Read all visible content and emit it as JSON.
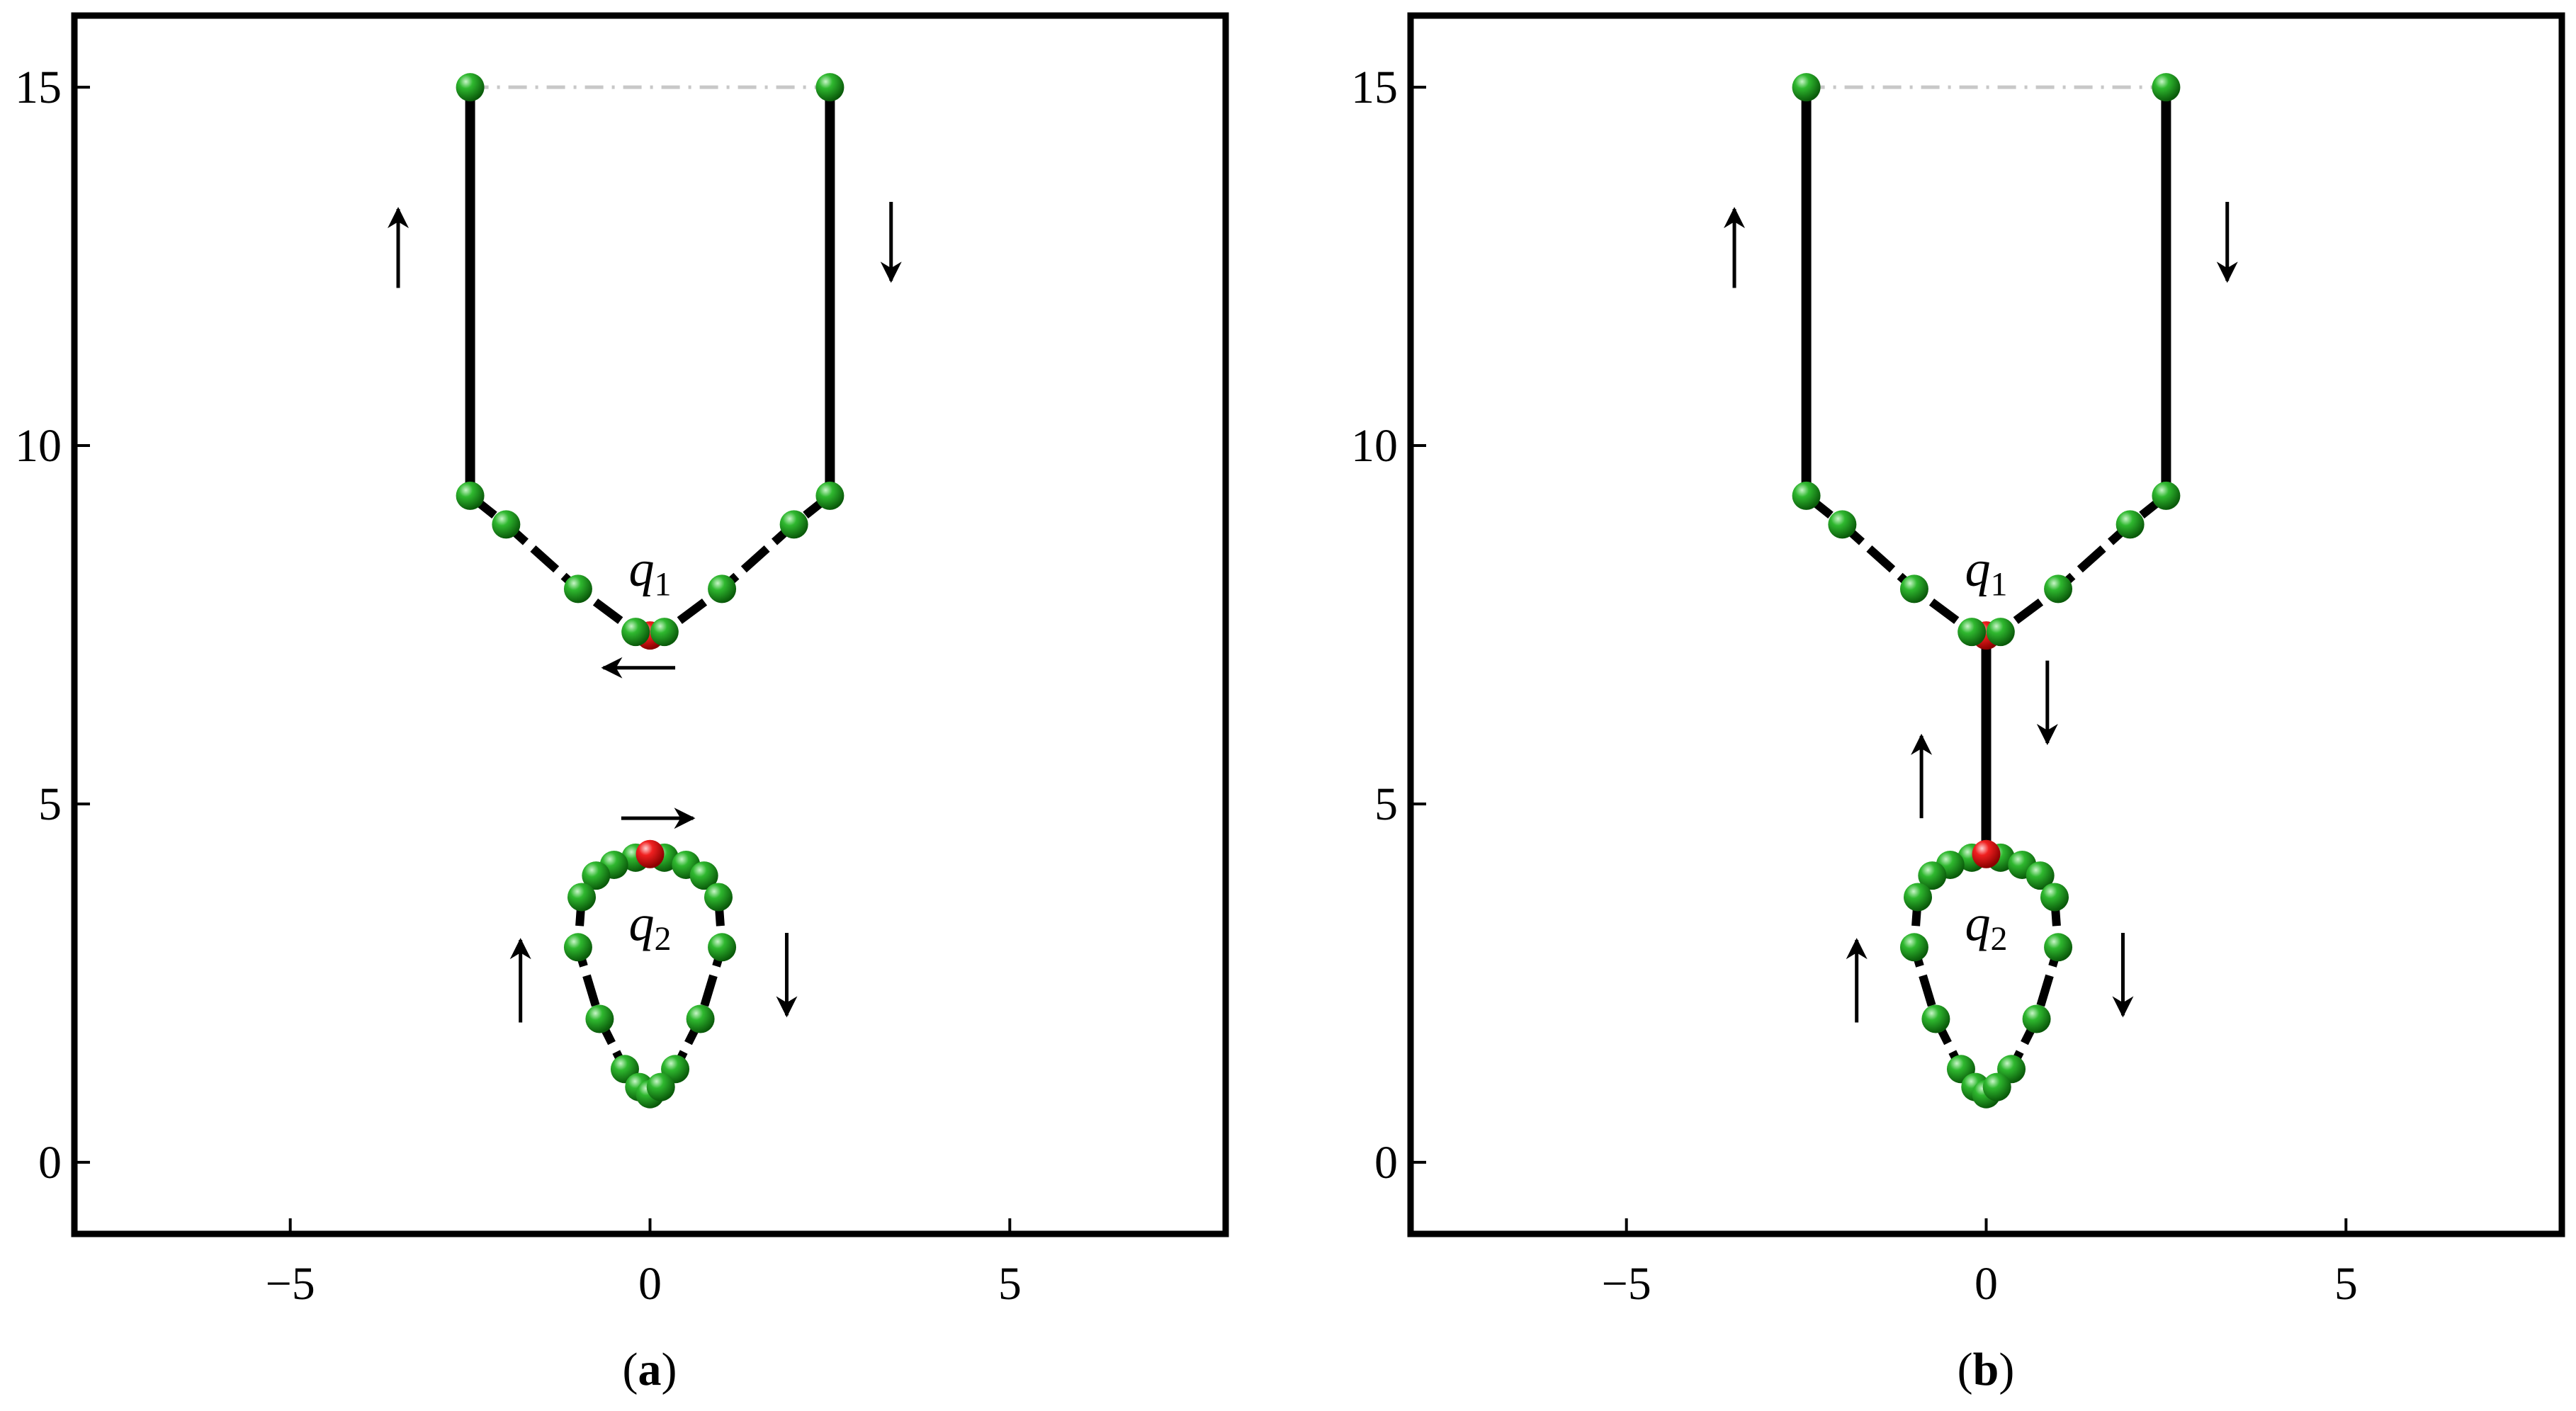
{
  "panels": [
    {
      "id": "a",
      "label_open": "(",
      "label_letter": "a",
      "label_close": ")",
      "x_ticks": [
        "−5",
        "0",
        "5"
      ],
      "y_ticks": [
        "0",
        "5",
        "10",
        "15"
      ],
      "node_q1": {
        "symbol": "q",
        "sub": "1"
      },
      "node_q2": {
        "symbol": "q",
        "sub": "2"
      },
      "connector": false
    },
    {
      "id": "b",
      "label_open": "(",
      "label_letter": "b",
      "label_close": ")",
      "x_ticks": [
        "−5",
        "0",
        "5"
      ],
      "y_ticks": [
        "0",
        "5",
        "10",
        "15"
      ],
      "node_q1": {
        "symbol": "q",
        "sub": "1"
      },
      "node_q2": {
        "symbol": "q",
        "sub": "2"
      },
      "connector": true
    }
  ],
  "axes": {
    "xlim": [
      -8,
      8
    ],
    "ylim": [
      -1,
      16
    ],
    "x_tick_values": [
      -5,
      0,
      5
    ],
    "y_tick_values": [
      0,
      5,
      10,
      15
    ]
  },
  "colors": {
    "node": "#1e9b1e",
    "node_highlight": "#e81c1c",
    "line": "#000000",
    "dashdot": "#c8c8c8"
  },
  "geometry_data": {
    "upper_chain": {
      "top_left": [
        -2.5,
        15
      ],
      "top_right": [
        2.5,
        15
      ],
      "left_vertical_bottom": [
        -2.5,
        9.3
      ],
      "right_vertical_bottom": [
        2.5,
        9.3
      ],
      "left_arm": [
        [
          -2.5,
          9.3
        ],
        [
          -2.0,
          8.9
        ],
        [
          -1.0,
          8.0
        ],
        [
          -0.2,
          7.4
        ]
      ],
      "right_arm": [
        [
          2.5,
          9.3
        ],
        [
          2.0,
          8.9
        ],
        [
          1.0,
          8.0
        ],
        [
          0.2,
          7.4
        ]
      ],
      "center": [
        0,
        7.35
      ]
    },
    "lower_loop": {
      "top": [
        0,
        4.3
      ],
      "left": [
        [
          -0.2,
          4.25
        ],
        [
          -0.5,
          4.15
        ],
        [
          -0.75,
          4.0
        ],
        [
          -0.95,
          3.7
        ],
        [
          -1.0,
          3.0
        ],
        [
          -0.7,
          2.0
        ],
        [
          -0.35,
          1.3
        ],
        [
          -0.15,
          1.05
        ],
        [
          0,
          0.95
        ]
      ],
      "right": [
        [
          0.2,
          4.25
        ],
        [
          0.5,
          4.15
        ],
        [
          0.75,
          4.0
        ],
        [
          0.95,
          3.7
        ],
        [
          1.0,
          3.0
        ],
        [
          0.7,
          2.0
        ],
        [
          0.35,
          1.3
        ],
        [
          0.15,
          1.05
        ]
      ]
    },
    "arrows": {
      "upper_left_up": {
        "x": -3.5,
        "y0": 12.2,
        "y1": 13.3
      },
      "upper_right_down": {
        "x": 3.35,
        "y0": 13.4,
        "y1": 12.3
      },
      "q1_left": {
        "y": 6.9,
        "x0": 0.35,
        "x1": -0.65
      },
      "q2_right": {
        "y": 4.8,
        "x0": -0.4,
        "x1": 0.6
      },
      "q2_left_up": {
        "x": -1.8,
        "y0": 1.95,
        "y1": 3.1
      },
      "q2_right_down": {
        "x": 1.9,
        "y0": 3.2,
        "y1": 2.05
      },
      "connector_up": {
        "x": -0.9,
        "y0": 4.8,
        "y1": 5.95
      },
      "connector_down": {
        "x": 0.85,
        "y0": 7.0,
        "y1": 5.85
      }
    }
  }
}
